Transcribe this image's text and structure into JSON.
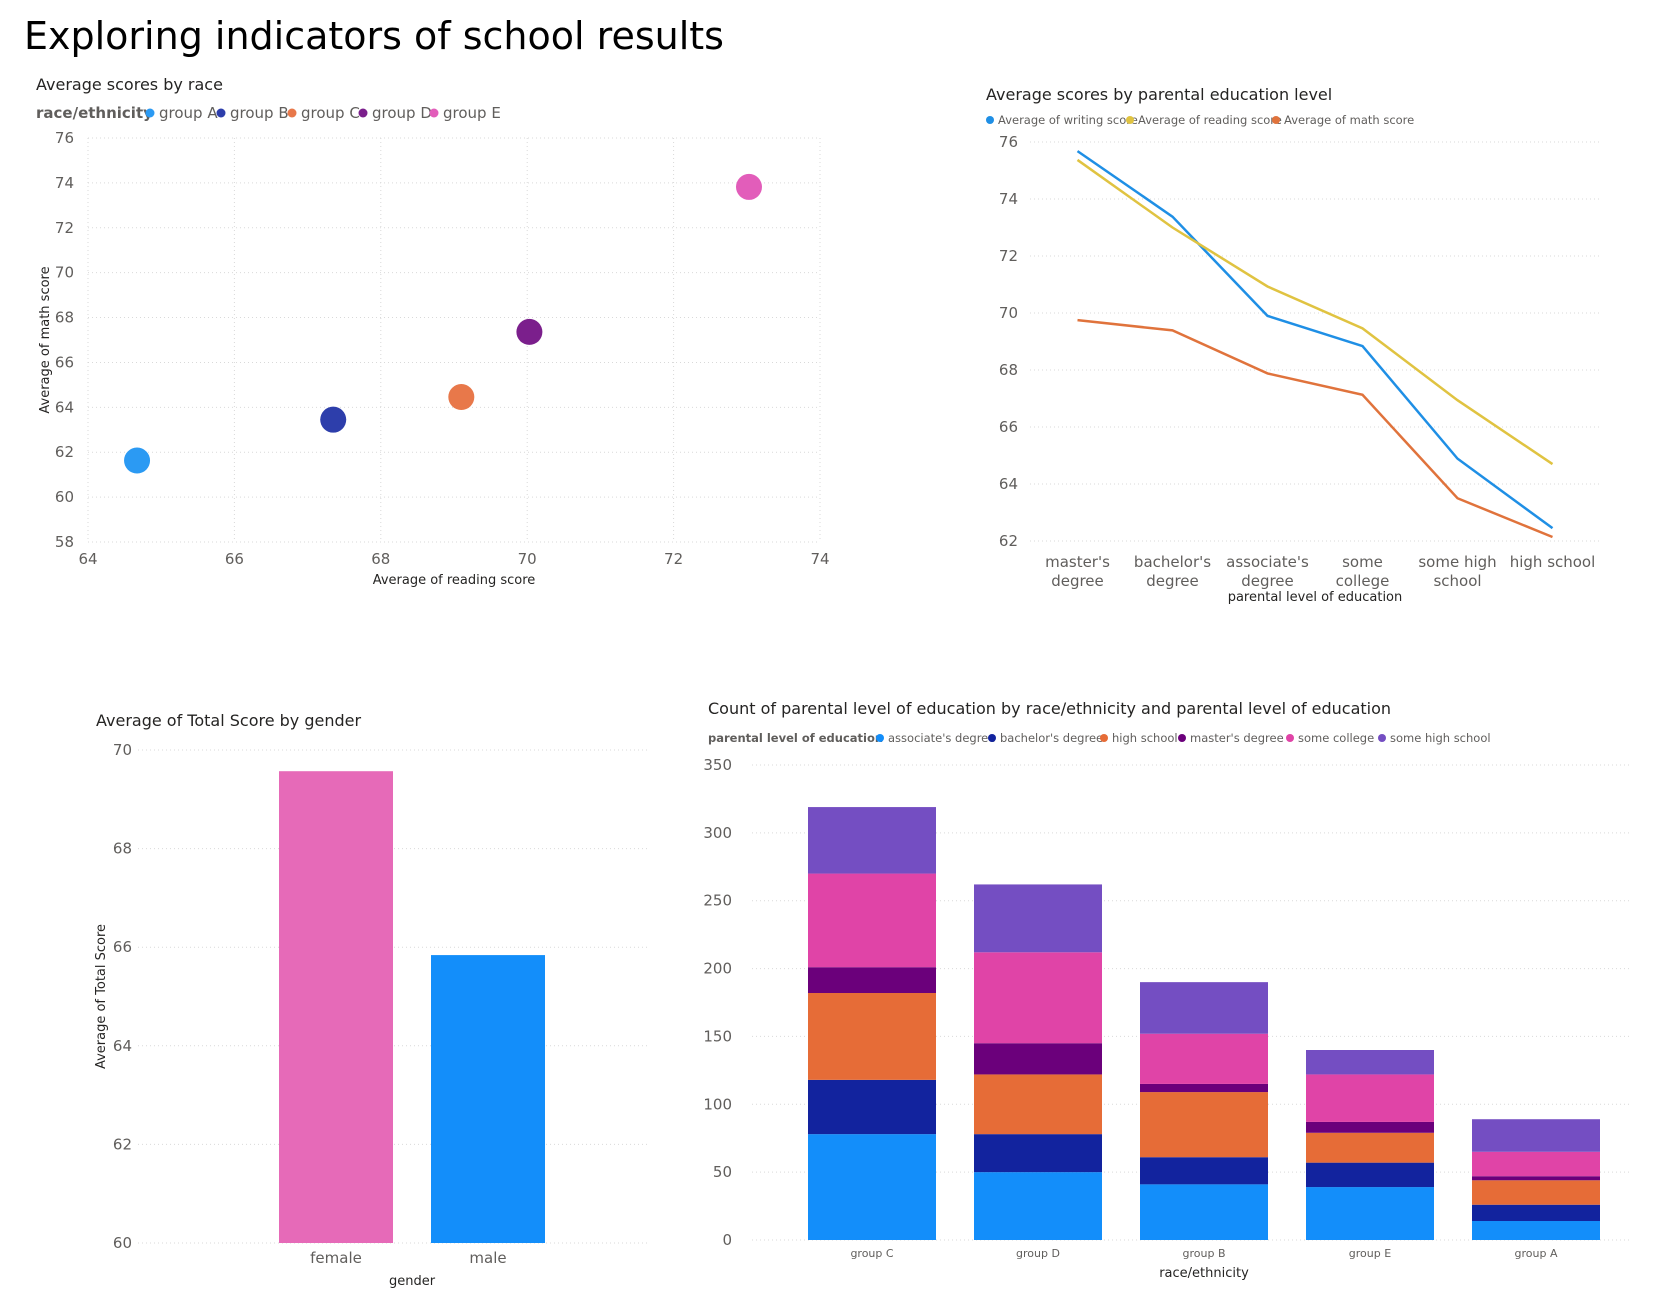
{
  "page": {
    "title": "Exploring indicators of school results"
  },
  "scatter": {
    "chart_data": {
      "type": "scatter",
      "title": "Average scores by race",
      "xlabel": "Average of reading score",
      "ylabel": "Average of math score",
      "xlim": [
        64,
        74
      ],
      "ylim": [
        58,
        76
      ],
      "xticks": [
        "64",
        "66",
        "68",
        "70",
        "72",
        "74"
      ],
      "yticks": [
        "58",
        "60",
        "62",
        "64",
        "66",
        "68",
        "70",
        "72",
        "74",
        "76"
      ],
      "grid": true,
      "legend": {
        "title": "race/ethnicity",
        "position": "top-left"
      },
      "series": [
        {
          "name": "group A",
          "x": 64.67,
          "y": 61.63,
          "color": "#2B9AF3"
        },
        {
          "name": "group B",
          "x": 67.35,
          "y": 63.45,
          "color": "#2D3EAB"
        },
        {
          "name": "group C",
          "x": 69.1,
          "y": 64.46,
          "color": "#E8784A"
        },
        {
          "name": "group D",
          "x": 70.03,
          "y": 67.36,
          "color": "#7B1F8C"
        },
        {
          "name": "group E",
          "x": 73.03,
          "y": 73.82,
          "color": "#E25DBA"
        }
      ]
    }
  },
  "line": {
    "chart_data": {
      "type": "line",
      "title": "Average scores by parental education level",
      "xlabel": "parental level of education",
      "ylabel": "",
      "ylim": [
        62,
        76
      ],
      "yticks": [
        "62",
        "64",
        "66",
        "68",
        "70",
        "72",
        "74",
        "76"
      ],
      "grid": true,
      "legend": {
        "position": "top-left"
      },
      "categories": [
        [
          "master's",
          "degree"
        ],
        [
          "bachelor's",
          "degree"
        ],
        [
          "associate's",
          "degree"
        ],
        [
          "some",
          "college"
        ],
        [
          "some high",
          "school"
        ],
        [
          "high school"
        ]
      ],
      "series": [
        {
          "name": "Average of writing score",
          "color": "#1F8FE5",
          "values": [
            75.68,
            73.38,
            69.9,
            68.84,
            64.89,
            62.45
          ]
        },
        {
          "name": "Average of reading score",
          "color": "#E0C341",
          "values": [
            75.37,
            73.0,
            70.93,
            69.46,
            66.94,
            64.7
          ]
        },
        {
          "name": "Average of math score",
          "color": "#E0733C",
          "values": [
            69.75,
            69.39,
            67.88,
            67.13,
            63.5,
            62.14
          ]
        }
      ]
    }
  },
  "bar": {
    "chart_data": {
      "type": "bar",
      "title": "Average of Total Score by gender",
      "xlabel": "gender",
      "ylabel": "Average of Total Score",
      "ylim": [
        60,
        70
      ],
      "yticks": [
        "60",
        "62",
        "64",
        "66",
        "68",
        "70"
      ],
      "grid": true,
      "categories": [
        "female",
        "male"
      ],
      "values": [
        69.57,
        65.84
      ],
      "colors": [
        "#E66AB8",
        "#138EFA"
      ]
    }
  },
  "stacked": {
    "chart_data": {
      "type": "bar",
      "stacked": true,
      "title": "Count of parental level of education by race/ethnicity and parental level of education",
      "xlabel": "race/ethnicity",
      "ylabel": "",
      "ylim": [
        0,
        350
      ],
      "yticks": [
        "0",
        "50",
        "100",
        "150",
        "200",
        "250",
        "300",
        "350"
      ],
      "grid": true,
      "legend": {
        "title": "parental level of education",
        "position": "top-left"
      },
      "categories": [
        "group C",
        "group D",
        "group B",
        "group E",
        "group A"
      ],
      "series": [
        {
          "name": "associate's degree",
          "color": "#138EFA",
          "values": [
            78,
            50,
            41,
            39,
            14
          ]
        },
        {
          "name": "bachelor's degree",
          "color": "#12239E",
          "values": [
            40,
            28,
            20,
            18,
            12
          ]
        },
        {
          "name": "high school",
          "color": "#E66C37",
          "values": [
            64,
            44,
            48,
            22,
            18
          ]
        },
        {
          "name": "master's degree",
          "color": "#6B007B",
          "values": [
            19,
            23,
            6,
            8,
            3
          ]
        },
        {
          "name": "some college",
          "color": "#E044A7",
          "values": [
            69,
            67,
            37,
            35,
            18
          ]
        },
        {
          "name": "some high school",
          "color": "#744EC2",
          "values": [
            49,
            50,
            38,
            18,
            24
          ]
        }
      ]
    }
  }
}
